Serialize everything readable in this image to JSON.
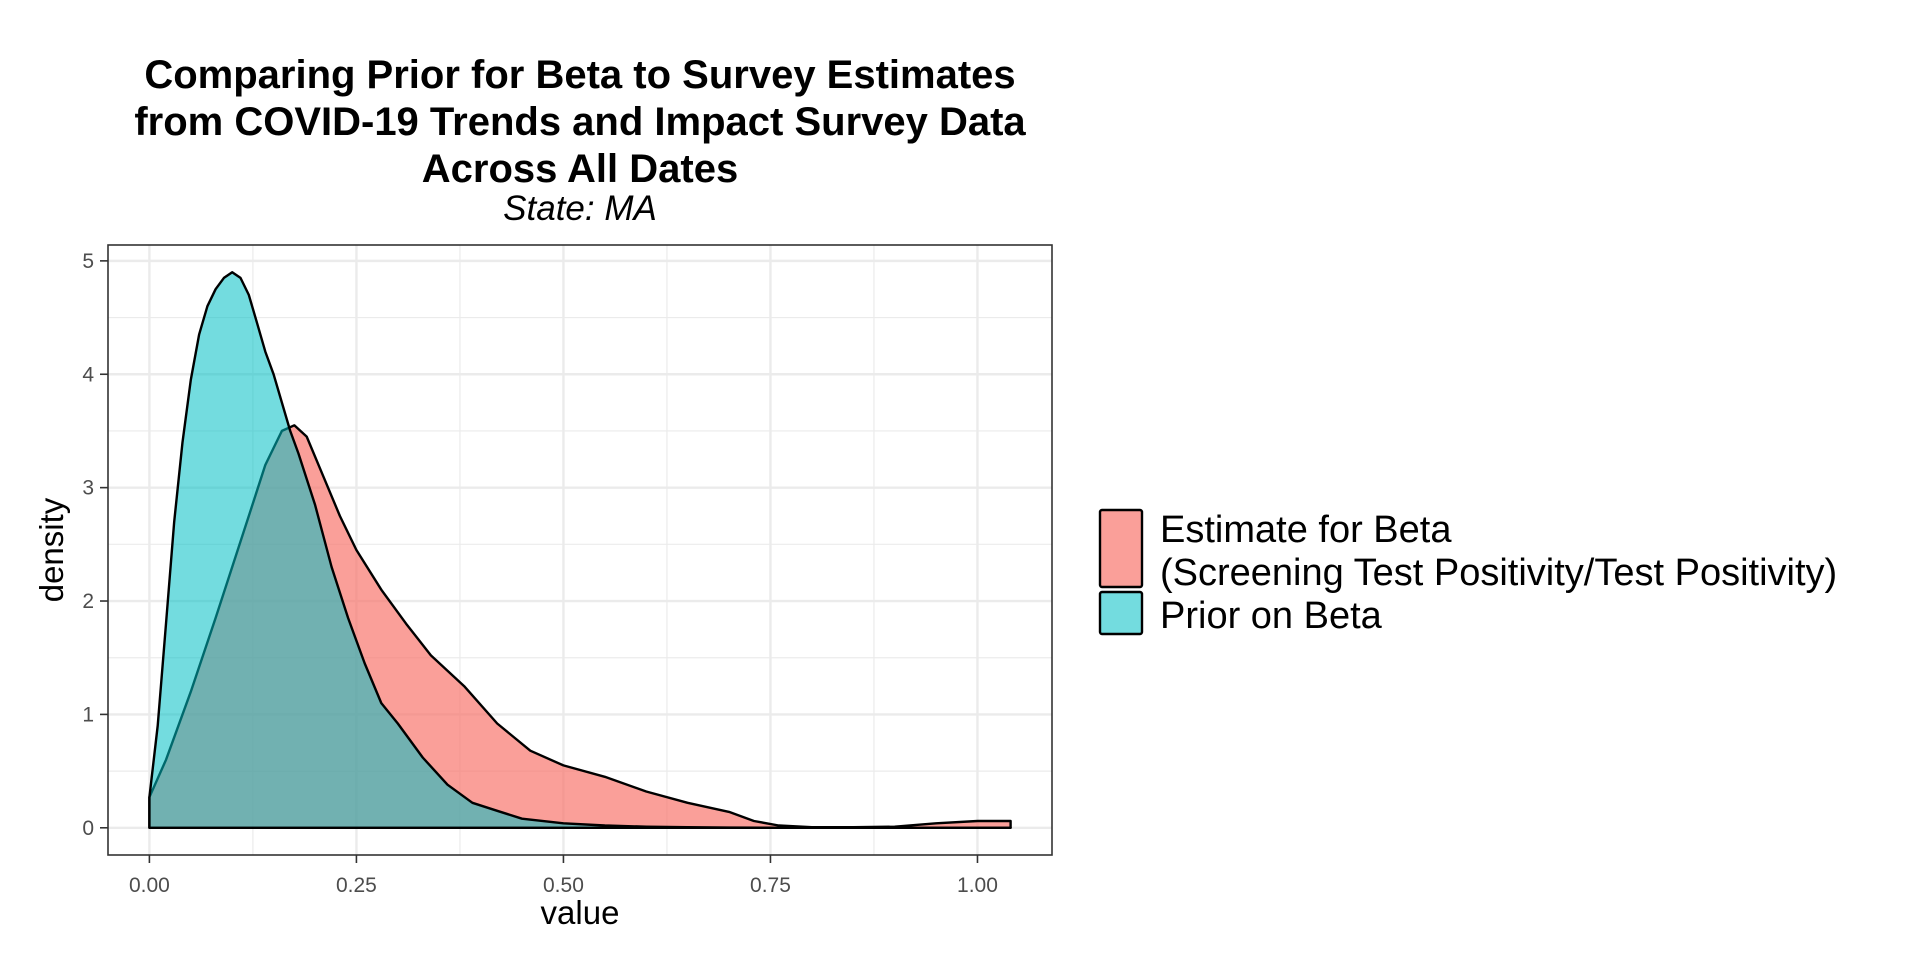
{
  "chart_data": {
    "type": "area",
    "title_lines": [
      "Comparing Prior for Beta to Survey Estimates",
      "from COVID-19 Trends and Impact Survey Data",
      "Across All Dates"
    ],
    "subtitle": "State: MA",
    "xlabel": "value",
    "ylabel": "density",
    "xlim": [
      -0.05,
      1.09
    ],
    "ylim": [
      -0.24,
      5.14
    ],
    "x_ticks": [
      0,
      0.25,
      0.5,
      0.75,
      1.0
    ],
    "x_tick_labels": [
      "0.00",
      "0.25",
      "0.50",
      "0.75",
      "1.00"
    ],
    "y_ticks": [
      0,
      1,
      2,
      3,
      4,
      5
    ],
    "y_tick_labels": [
      "0",
      "1",
      "2",
      "3",
      "4",
      "5"
    ],
    "grid": true,
    "legend_position": "right",
    "series": [
      {
        "name_lines": [
          "Estimate for Beta",
          "(Screening Test Positivity/Test Positivity)"
        ],
        "color": "#F8766D",
        "opacity": 0.7,
        "x": [
          0.0,
          0.02,
          0.05,
          0.08,
          0.1,
          0.12,
          0.14,
          0.16,
          0.175,
          0.19,
          0.21,
          0.23,
          0.25,
          0.28,
          0.31,
          0.34,
          0.38,
          0.42,
          0.46,
          0.5,
          0.55,
          0.6,
          0.65,
          0.7,
          0.73,
          0.76,
          0.8,
          0.85,
          0.9,
          0.95,
          1.0,
          1.04
        ],
        "y": [
          0.27,
          0.6,
          1.2,
          1.85,
          2.3,
          2.75,
          3.2,
          3.5,
          3.55,
          3.45,
          3.1,
          2.75,
          2.45,
          2.1,
          1.8,
          1.52,
          1.25,
          0.92,
          0.68,
          0.55,
          0.45,
          0.32,
          0.22,
          0.14,
          0.06,
          0.02,
          0.005,
          0.005,
          0.01,
          0.04,
          0.06,
          0.06
        ]
      },
      {
        "name": "Prior on Beta",
        "color": "#00BFC4",
        "opacity": 0.55,
        "x": [
          0.0,
          0.01,
          0.02,
          0.03,
          0.04,
          0.05,
          0.06,
          0.07,
          0.08,
          0.09,
          0.1,
          0.11,
          0.12,
          0.13,
          0.14,
          0.15,
          0.16,
          0.17,
          0.18,
          0.2,
          0.22,
          0.24,
          0.26,
          0.28,
          0.3,
          0.33,
          0.36,
          0.39,
          0.42,
          0.45,
          0.5,
          0.55,
          0.6,
          0.65,
          0.7,
          0.8,
          0.9,
          1.04
        ],
        "y": [
          0.27,
          0.9,
          1.8,
          2.7,
          3.4,
          3.95,
          4.35,
          4.6,
          4.75,
          4.85,
          4.9,
          4.85,
          4.7,
          4.45,
          4.2,
          4.0,
          3.75,
          3.5,
          3.3,
          2.85,
          2.3,
          1.85,
          1.45,
          1.1,
          0.92,
          0.62,
          0.38,
          0.22,
          0.15,
          0.08,
          0.04,
          0.02,
          0.01,
          0.005,
          0.002,
          0.001,
          0.0,
          0.0
        ]
      }
    ]
  }
}
